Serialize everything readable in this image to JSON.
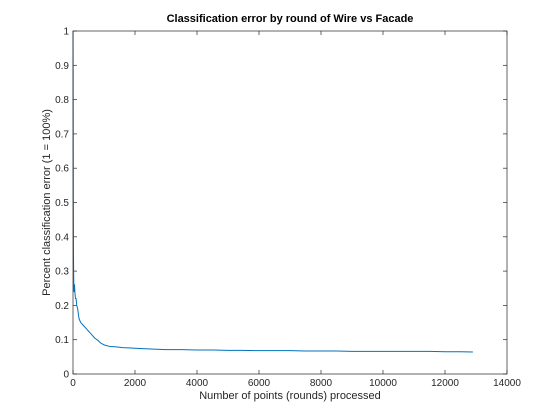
{
  "chart_data": {
    "type": "line",
    "title": "Classification error by round of Wire vs Facade",
    "xlabel": "Number of points (rounds) processed",
    "ylabel": "Percent classification error (1 = 100%)",
    "xlim": [
      0,
      14000
    ],
    "ylim": [
      0,
      1
    ],
    "xticks": [
      0,
      2000,
      4000,
      6000,
      8000,
      10000,
      12000,
      14000
    ],
    "yticks": [
      0,
      0.1,
      0.2,
      0.3,
      0.4,
      0.5,
      0.6,
      0.7,
      0.8,
      0.9,
      1
    ],
    "grid": false,
    "colors": {
      "line": "#0072bd",
      "axes": "#262626",
      "background": "#ffffff"
    },
    "series": [
      {
        "x": [
          1,
          5,
          10,
          15,
          20,
          30,
          40,
          50,
          60,
          80,
          100,
          120,
          150,
          180,
          200,
          250,
          300,
          350,
          400,
          450,
          500,
          550,
          600,
          700,
          800,
          900,
          1000,
          1200,
          1400,
          1600,
          1800,
          2000,
          2500,
          3000,
          3500,
          4000,
          4500,
          5000,
          5500,
          6000,
          6500,
          7000,
          7500,
          8000,
          8500,
          9000,
          9500,
          10000,
          10500,
          11000,
          11500,
          12000,
          12500,
          12900
        ],
        "y": [
          1.0,
          0.8,
          0.5,
          0.35,
          0.3,
          0.24,
          0.25,
          0.26,
          0.24,
          0.22,
          0.22,
          0.2,
          0.19,
          0.17,
          0.16,
          0.15,
          0.145,
          0.14,
          0.135,
          0.13,
          0.125,
          0.12,
          0.115,
          0.105,
          0.098,
          0.09,
          0.085,
          0.08,
          0.079,
          0.077,
          0.076,
          0.075,
          0.073,
          0.071,
          0.071,
          0.07,
          0.07,
          0.069,
          0.069,
          0.068,
          0.068,
          0.068,
          0.067,
          0.067,
          0.067,
          0.066,
          0.066,
          0.066,
          0.066,
          0.066,
          0.066,
          0.065,
          0.065,
          0.064
        ]
      }
    ]
  }
}
